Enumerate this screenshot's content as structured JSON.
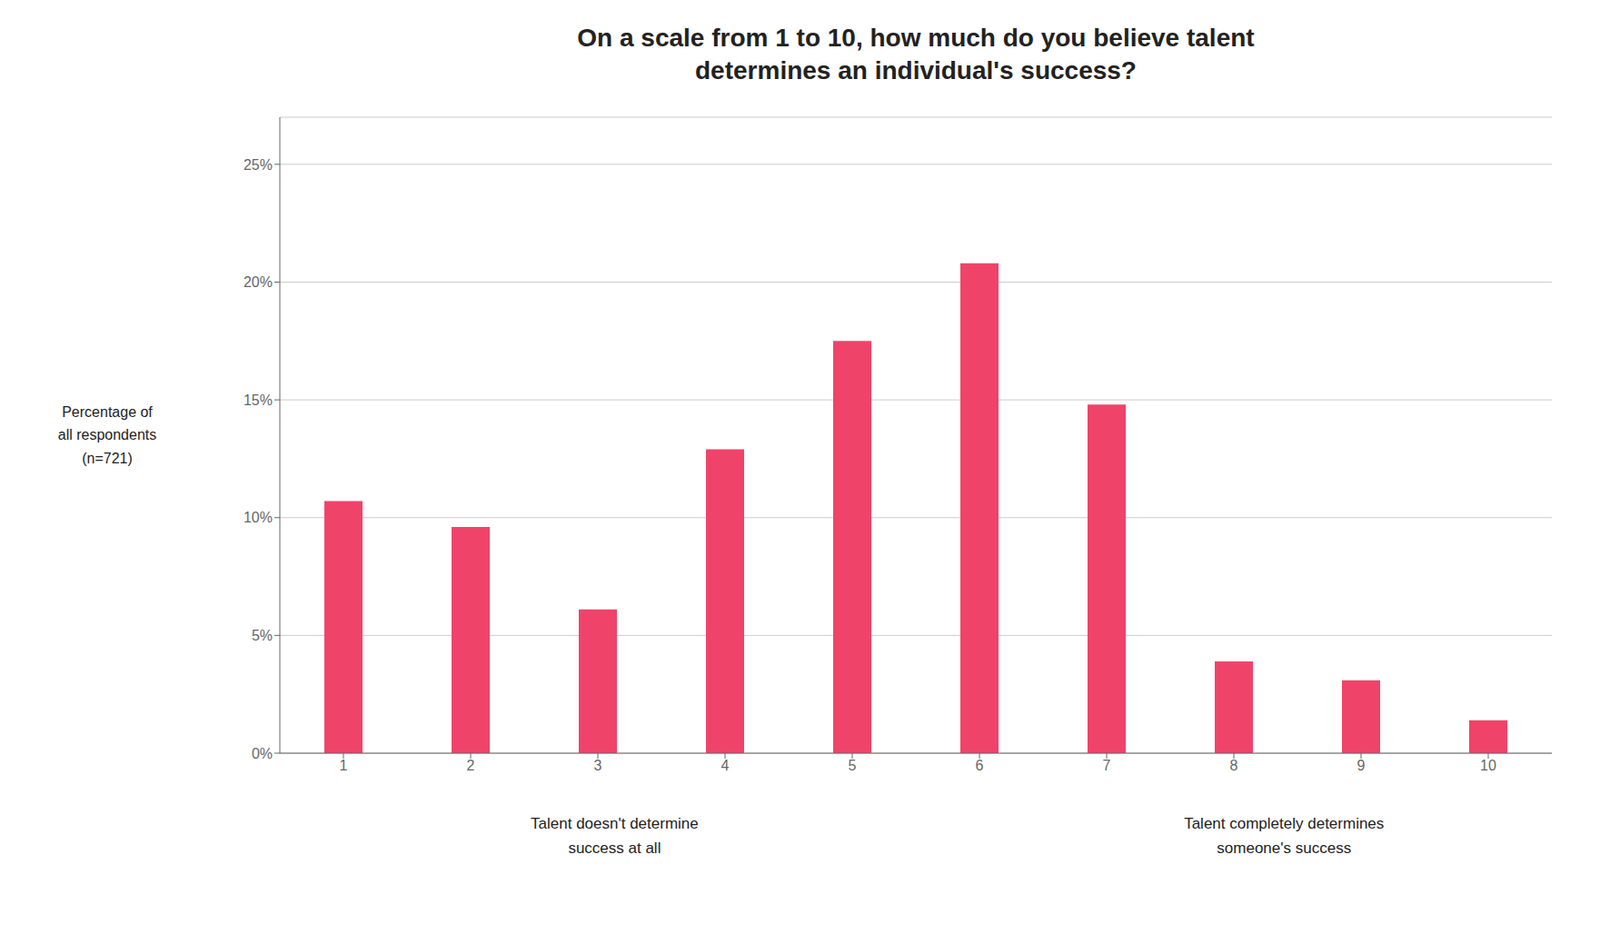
{
  "chart_data": {
    "type": "bar",
    "title": "On a scale from 1 to 10, how much do you believe talent\ndetermines an individual's success?",
    "ylabel": "Percentage of\nall respondents\n(n=721)",
    "annotations": [
      "Talent doesn't determine\nsuccess at all",
      "Talent completely determines\nsomeone's success"
    ],
    "categories": [
      1,
      2,
      3,
      4,
      5,
      6,
      7,
      8,
      9,
      10
    ],
    "values": [
      10.7,
      9.6,
      6.1,
      12.9,
      17.5,
      20.8,
      14.8,
      3.9,
      3.1,
      1.4
    ],
    "color": "#F0436A",
    "ylim": [
      0,
      27
    ],
    "yticks": [
      {
        "value": 0,
        "label": "0%"
      },
      {
        "value": 5,
        "label": "5%"
      },
      {
        "value": 10,
        "label": "10%"
      },
      {
        "value": 15,
        "label": "15%"
      },
      {
        "value": 20,
        "label": "20%"
      },
      {
        "value": 25,
        "label": "25%"
      }
    ],
    "grid": true
  }
}
